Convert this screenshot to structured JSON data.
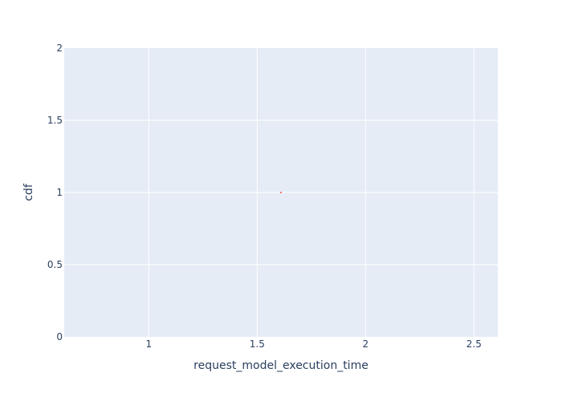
{
  "chart_data": {
    "type": "scatter",
    "title": "",
    "xlabel": "request_model_execution_time",
    "ylabel": "cdf",
    "xlim": [
      0.61,
      2.61
    ],
    "ylim": [
      0,
      2
    ],
    "x_ticks": [
      1,
      1.5,
      2,
      2.5
    ],
    "x_tick_labels": [
      "1",
      "1.5",
      "2",
      "2.5"
    ],
    "y_ticks": [
      0,
      0.5,
      1,
      1.5,
      2
    ],
    "y_tick_labels": [
      "0",
      "0.5",
      "1",
      "1.5",
      "2"
    ],
    "grid": true,
    "series": [
      {
        "x": [
          1.61
        ],
        "y": [
          1
        ],
        "color": "#ef553b"
      }
    ],
    "colors": {
      "plot_background": "#e5ecf6",
      "grid": "#ffffff",
      "text": "#2a3f5f"
    }
  }
}
